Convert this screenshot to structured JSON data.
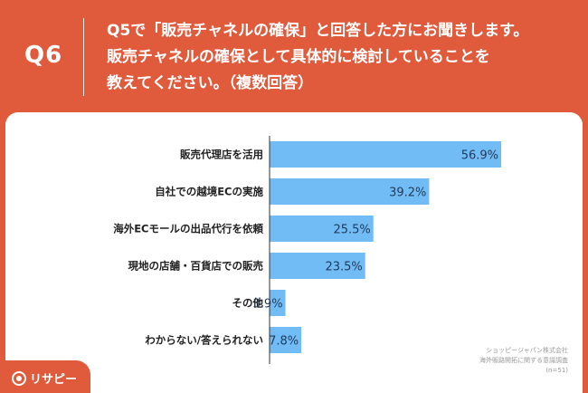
{
  "header": {
    "question_number": "Q6",
    "question_lines": [
      "Q5で「販売チャネルの確保」と回答した方にお聞きします。",
      "販売チャネルの確保として具体的に検討していることを",
      "教えてください。（複数回答）"
    ]
  },
  "chart_data": {
    "type": "bar",
    "orientation": "horizontal",
    "categories": [
      "販売代理店を活用",
      "自社での越境ECの実施",
      "海外ECモールの出品代行を依頼",
      "現地の店舗・百貨店での販売",
      "その他",
      "わからない/答えられない"
    ],
    "values": [
      56.9,
      39.2,
      25.5,
      23.5,
      3.9,
      7.8
    ],
    "value_labels": [
      "56.9%",
      "39.2%",
      "25.5%",
      "23.5%",
      "3.9%",
      "7.8%"
    ],
    "xlim": [
      0,
      100
    ],
    "bar_color": "#72bcf6",
    "label_color": "#1f3a5a"
  },
  "source": {
    "company": "ショッピージャパン株式会社",
    "survey": "海外販路開拓に関する意識調査",
    "sample": "(n=51)"
  },
  "logo": {
    "text": "リサピー",
    "icon": "lisapi-logo-icon"
  },
  "colors": {
    "background": "#e05a3c",
    "panel": "#ffffff"
  }
}
